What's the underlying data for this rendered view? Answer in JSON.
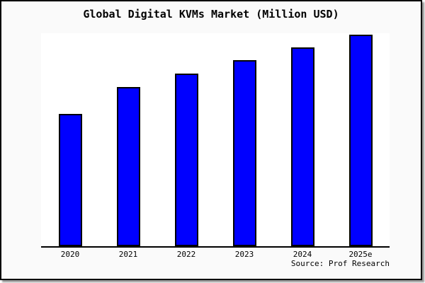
{
  "title": "Global Digital KVMs Market (Million USD)",
  "source_credit": "Source: Prof Research",
  "colors": {
    "bar_fill": "#0000ff",
    "bar_border": "#000000",
    "plot_background": "#ffffff",
    "page_background": "#fafafa",
    "frame_border": "#000000",
    "text": "#000000"
  },
  "chart_data": {
    "type": "bar",
    "title": "Global Digital KVMs Market (Million USD)",
    "categories": [
      "2020",
      "2021",
      "2022",
      "2023",
      "2024",
      "2025e"
    ],
    "values": [
      62.7,
      75.2,
      81.5,
      87.9,
      93.9,
      100
    ],
    "values_estimated": true,
    "value_basis": "index, 2025e = 100 (no y-axis labels shown in chart)",
    "xlabel": "",
    "ylabel": "",
    "ylim": [
      0,
      100.7
    ],
    "grid": false,
    "legend": null,
    "y_axis_visible": false,
    "x_axis_line": true
  }
}
